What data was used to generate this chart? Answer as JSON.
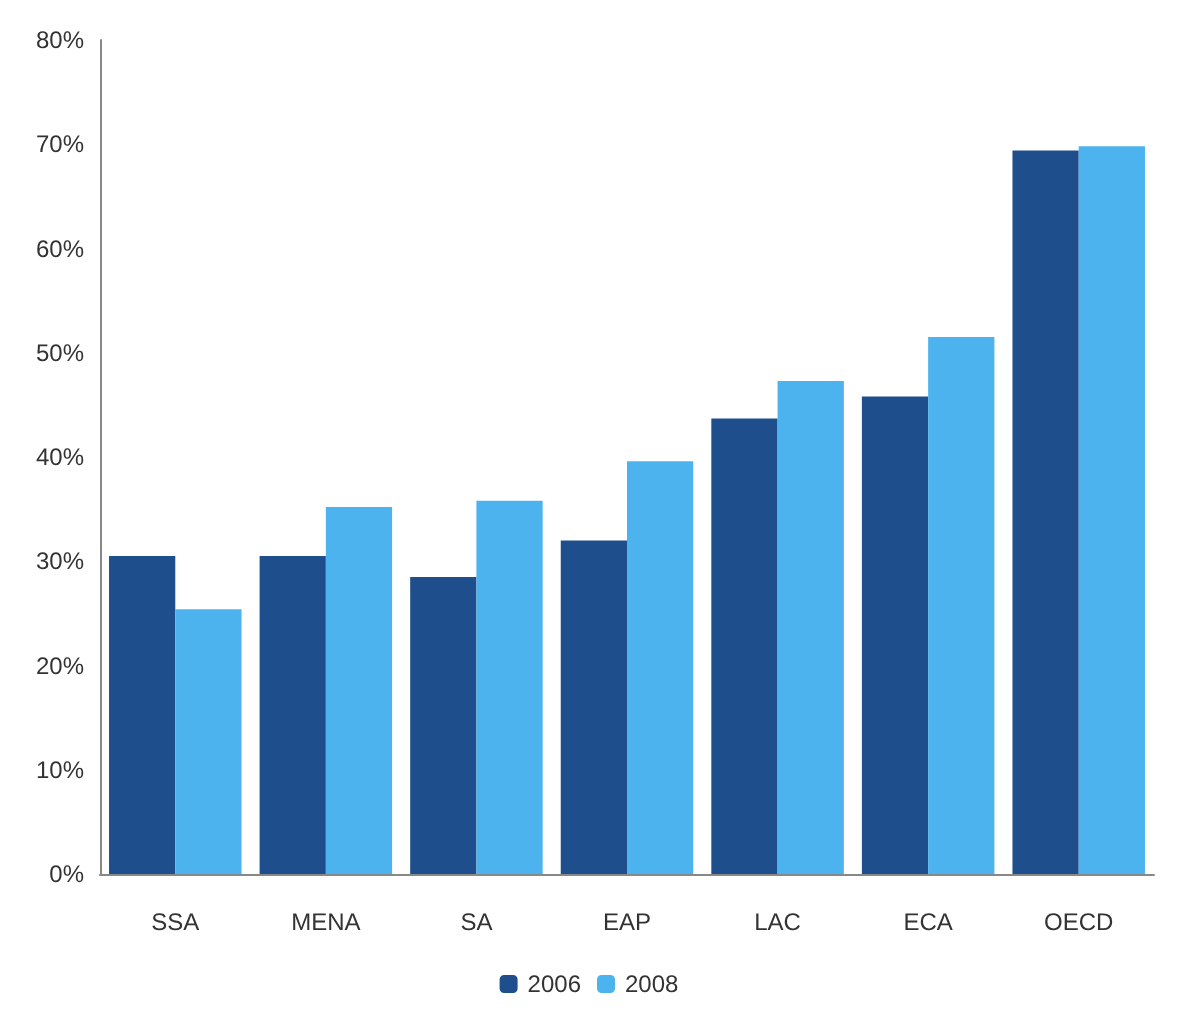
{
  "chart_data": {
    "type": "bar",
    "categories": [
      "SSA",
      "MENA",
      "SA",
      "EAP",
      "LAC",
      "ECA",
      "OECD"
    ],
    "series": [
      {
        "name": "2006",
        "color": "#1f4e8c",
        "values": [
          30.5,
          30.5,
          28.5,
          32,
          43.7,
          45.8,
          69.4
        ]
      },
      {
        "name": "2008",
        "color": "#4cb3ee",
        "values": [
          25.4,
          35.2,
          35.8,
          39.6,
          47.3,
          51.5,
          69.8
        ]
      }
    ],
    "ylim": [
      0,
      80
    ],
    "yticks": [
      {
        "value": 0,
        "label": "0%"
      },
      {
        "value": 10,
        "label": "10%"
      },
      {
        "value": 20,
        "label": "20%"
      },
      {
        "value": 30,
        "label": "30%"
      },
      {
        "value": 40,
        "label": "40%"
      },
      {
        "value": 50,
        "label": "50%"
      },
      {
        "value": 60,
        "label": "60%"
      },
      {
        "value": 70,
        "label": "70%"
      },
      {
        "value": 80,
        "label": "80%"
      }
    ],
    "grid": false,
    "legend": "bottom"
  }
}
